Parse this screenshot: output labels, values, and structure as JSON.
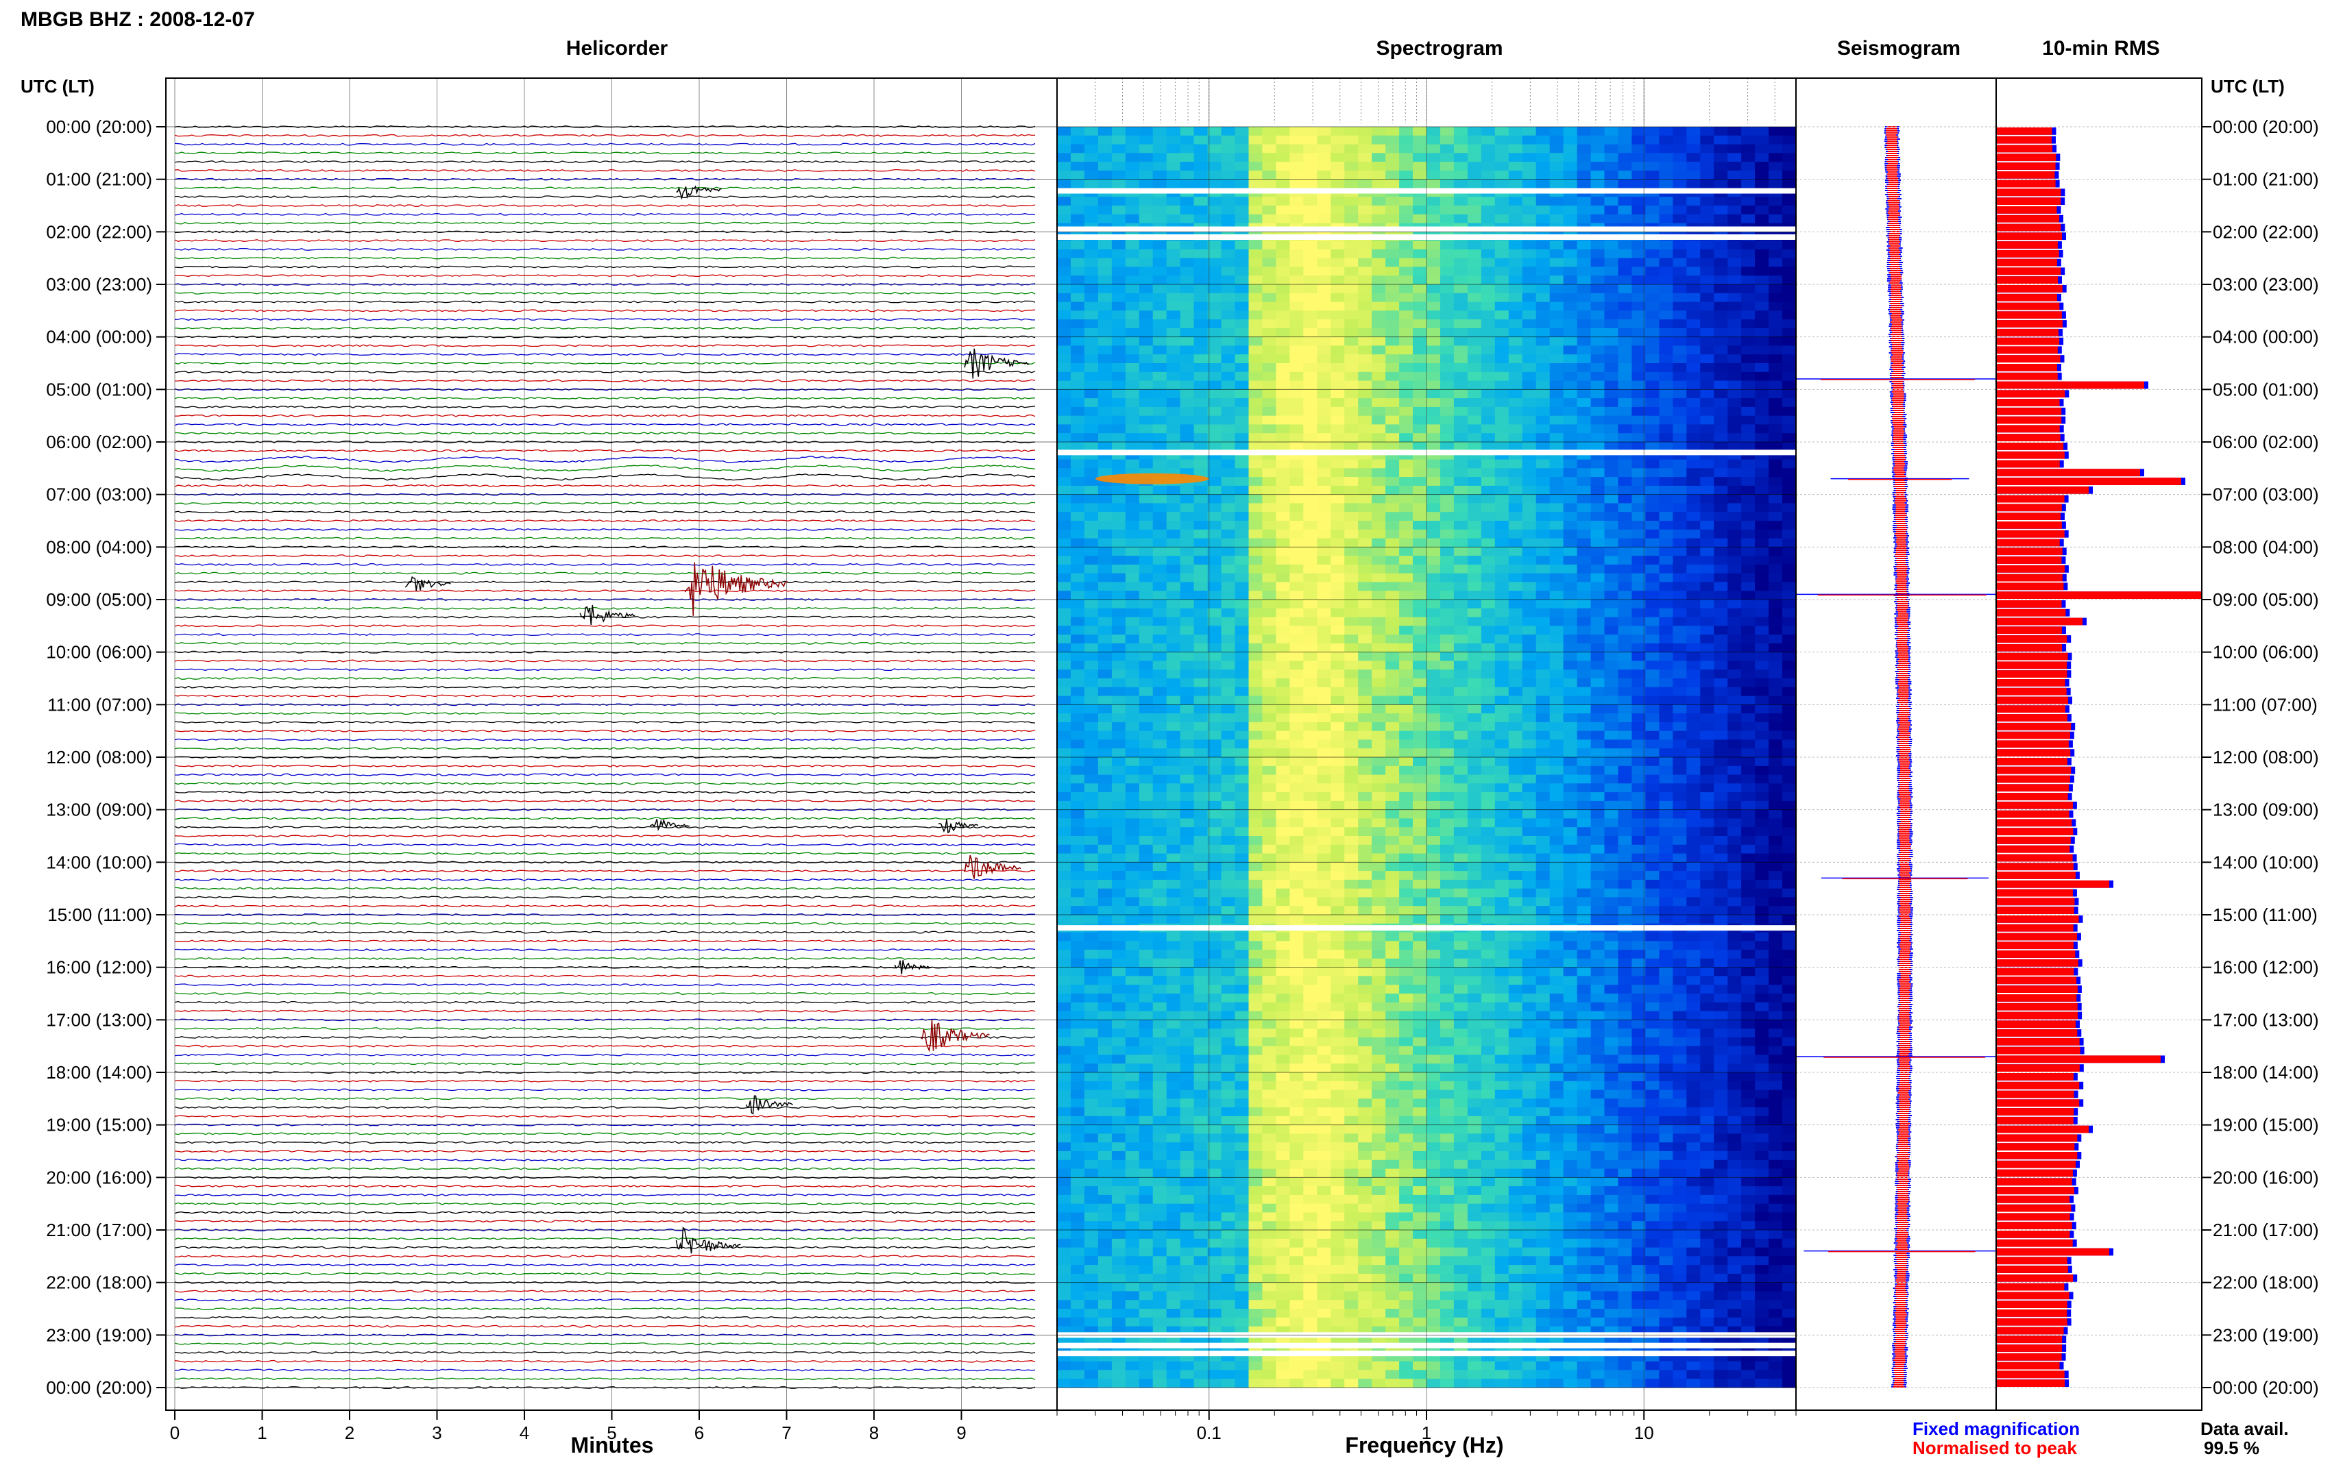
{
  "header": {
    "station_title": "MBGB BHZ : 2008-12-07"
  },
  "panels": {
    "helicorder_title": "Helicorder",
    "spectrogram_title": "Spectrogram",
    "seismogram_title": "Seismogram",
    "rms_title": "10-min RMS"
  },
  "axes": {
    "left_header": "UTC (LT)",
    "right_header": "UTC (LT)",
    "helicorder_xlabel": "Minutes",
    "spectrogram_xlabel": "Frequency (Hz)"
  },
  "legend": {
    "fixed_label": "Fixed magnification",
    "normalised_label": "Normalised to peak",
    "fixed_color": "#0000ff",
    "normalised_color": "#ff0000"
  },
  "data_availability": {
    "label": "Data avail.",
    "value": "99.5 %"
  },
  "colors": {
    "trace_cycle": [
      "#000000",
      "#cc0000",
      "#0000cc",
      "#008800"
    ],
    "event_black": "#000000",
    "event_darkred": "#8b0000",
    "rms_fill": "#ff0000",
    "rms_edge": "#0000ff",
    "spectrogram_low": "#000090",
    "spectrogram_high": "#ffff66"
  },
  "chart_data": [
    {
      "type": "line",
      "panel": "Helicorder",
      "xlabel": "Minutes",
      "x_ticks": [
        0,
        1,
        2,
        3,
        4,
        5,
        6,
        7,
        8,
        9
      ],
      "xlim": [
        0,
        10
      ],
      "y_tick_labels": [
        "00:00 (20:00)",
        "01:00 (21:00)",
        "02:00 (22:00)",
        "03:00 (23:00)",
        "04:00 (00:00)",
        "05:00 (01:00)",
        "06:00 (02:00)",
        "07:00 (03:00)",
        "08:00 (04:00)",
        "09:00 (05:00)",
        "10:00 (06:00)",
        "11:00 (07:00)",
        "12:00 (08:00)",
        "13:00 (09:00)",
        "14:00 (10:00)",
        "15:00 (11:00)",
        "16:00 (12:00)",
        "17:00 (13:00)",
        "18:00 (14:00)",
        "19:00 (15:00)",
        "20:00 (16:00)",
        "21:00 (17:00)",
        "22:00 (18:00)",
        "23:00 (19:00)",
        "00:00 (20:00)"
      ],
      "traces_per_hour": 6,
      "events": [
        {
          "hour": 1.2,
          "minute": 5.8,
          "strength": 0.8,
          "color": "black"
        },
        {
          "hour": 4.5,
          "minute": 9.1,
          "strength": 1.6,
          "color": "black"
        },
        {
          "hour": 8.7,
          "minute": 2.7,
          "strength": 0.8,
          "color": "black"
        },
        {
          "hour": 8.7,
          "minute": 5.9,
          "strength": 3.2,
          "color": "darkred"
        },
        {
          "hour": 9.3,
          "minute": 4.7,
          "strength": 1.2,
          "color": "black"
        },
        {
          "hour": 13.3,
          "minute": 5.5,
          "strength": 0.6,
          "color": "black"
        },
        {
          "hour": 13.3,
          "minute": 8.8,
          "strength": 0.6,
          "color": "black"
        },
        {
          "hour": 14.1,
          "minute": 9.1,
          "strength": 1.3,
          "color": "darkred"
        },
        {
          "hour": 16.0,
          "minute": 8.3,
          "strength": 0.5,
          "color": "black"
        },
        {
          "hour": 17.3,
          "minute": 8.6,
          "strength": 1.8,
          "color": "darkred"
        },
        {
          "hour": 18.6,
          "minute": 6.6,
          "strength": 0.9,
          "color": "black"
        },
        {
          "hour": 21.3,
          "minute": 5.8,
          "strength": 1.6,
          "color": "black"
        }
      ],
      "disturbed_segment": {
        "hour_start": 6.3,
        "hour_end": 6.7
      }
    },
    {
      "type": "heatmap",
      "panel": "Spectrogram",
      "xlabel": "Frequency (Hz)",
      "x_scale": "log",
      "xlim": [
        0.02,
        50
      ],
      "x_tick_labels": [
        "0.1",
        "1",
        "10"
      ],
      "x_ticks": [
        0.1,
        1,
        10
      ],
      "peak_band_hz": [
        0.15,
        0.5
      ],
      "gap_hours": [
        1.22,
        1.95,
        2.1,
        6.2,
        15.25,
        23.0,
        23.2,
        23.35
      ],
      "hot_spot": {
        "hour": 6.7,
        "freq_range_hz": [
          0.03,
          0.1
        ]
      }
    },
    {
      "type": "line",
      "panel": "Seismogram",
      "series": [
        {
          "name": "Fixed magnification",
          "color": "#0000ff"
        },
        {
          "name": "Normalised to peak",
          "color": "#ff0000"
        }
      ],
      "spikes": [
        {
          "hour": 4.8,
          "amplitude": 1.0
        },
        {
          "hour": 6.7,
          "amplitude": 0.3
        },
        {
          "hour": 8.9,
          "amplitude": 1.2
        },
        {
          "hour": 14.3,
          "amplitude": 0.6
        },
        {
          "hour": 17.7,
          "amplitude": 1.1
        },
        {
          "hour": 21.4,
          "amplitude": 0.9
        }
      ]
    },
    {
      "type": "bar",
      "panel": "10-min RMS",
      "orientation": "horizontal",
      "bins_per_hour": 6,
      "baseline_by_hour": [
        0.28,
        0.3,
        0.31,
        0.31,
        0.31,
        0.32,
        0.32,
        0.32,
        0.32,
        0.33,
        0.34,
        0.35,
        0.36,
        0.37,
        0.38,
        0.39,
        0.39,
        0.4,
        0.39,
        0.38,
        0.37,
        0.36,
        0.34,
        0.32,
        0.3
      ],
      "peaks": [
        {
          "hour": 4.8,
          "value": 0.72
        },
        {
          "hour": 6.5,
          "value": 0.7
        },
        {
          "hour": 6.7,
          "value": 0.9
        },
        {
          "hour": 6.8,
          "value": 0.45
        },
        {
          "hour": 8.9,
          "value": 1.0
        },
        {
          "hour": 9.4,
          "value": 0.42
        },
        {
          "hour": 14.3,
          "value": 0.55
        },
        {
          "hour": 17.6,
          "value": 0.8
        },
        {
          "hour": 19.0,
          "value": 0.45
        },
        {
          "hour": 21.4,
          "value": 0.55
        }
      ]
    }
  ]
}
